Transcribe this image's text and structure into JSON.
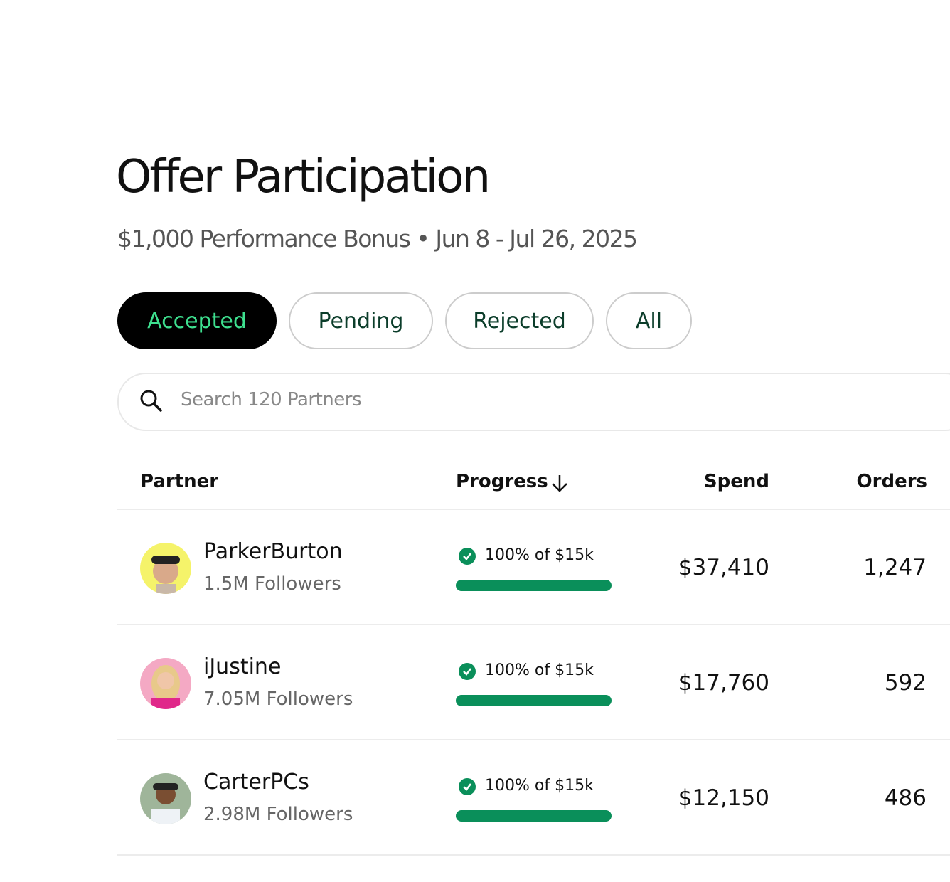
{
  "header": {
    "title": "Offer Participation",
    "subtitle": "$1,000 Performance Bonus • Jun 8 - Jul 26, 2025"
  },
  "tabs": [
    "Accepted",
    "Pending",
    "Rejected",
    "All"
  ],
  "search": {
    "placeholder": "Search 120 Partners"
  },
  "table": {
    "columns": [
      "Partner",
      "Progress",
      "Spend",
      "Orders"
    ],
    "rows": [
      {
        "name": "ParkerBurton",
        "followers": "1.5M Followers",
        "progress": "100% of $15k",
        "spend": "$37,410",
        "orders": "1,247"
      },
      {
        "name": "iJustine",
        "followers": "7.05M Followers",
        "progress": "100% of $15k",
        "spend": "$17,760",
        "orders": "592"
      },
      {
        "name": "CarterPCs",
        "followers": "2.98M Followers",
        "progress": "100% of $15k",
        "spend": "$12,150",
        "orders": "486"
      }
    ]
  }
}
